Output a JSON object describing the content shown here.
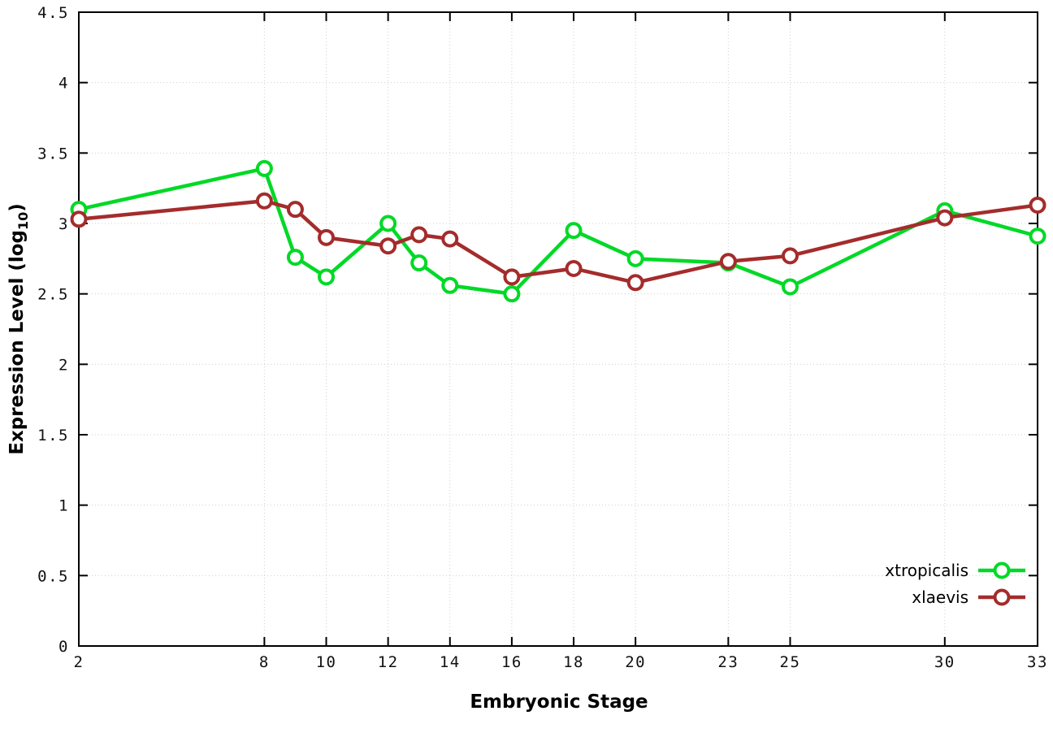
{
  "chart_data": {
    "type": "line",
    "title": "",
    "xlabel": "Embryonic Stage",
    "ylabel": {
      "main": "Expression Level (log",
      "sub": "10",
      "end": ")"
    },
    "x": [
      2,
      8,
      9,
      10,
      12,
      13,
      14,
      16,
      18,
      20,
      23,
      25,
      30,
      33
    ],
    "x_ticks": [
      2,
      8,
      10,
      12,
      14,
      16,
      18,
      20,
      23,
      25,
      30,
      33
    ],
    "y_ticks": [
      0,
      0.5,
      1,
      1.5,
      2,
      2.5,
      3,
      3.5,
      4,
      4.5
    ],
    "y_tick_labels": [
      "0",
      "0.5",
      "1",
      "1.5",
      "2",
      "2.5",
      "3",
      "3.5",
      "4",
      "4.5"
    ],
    "xlim": [
      2,
      33
    ],
    "ylim": [
      0,
      4.5
    ],
    "grid": true,
    "legend_position": "bottom-right",
    "series": [
      {
        "name": "xtropicalis",
        "color": "#00d926",
        "values": [
          3.1,
          3.39,
          2.76,
          2.62,
          3.0,
          2.72,
          2.56,
          2.5,
          2.95,
          2.75,
          2.72,
          2.55,
          3.09,
          2.91
        ]
      },
      {
        "name": "xlaevis",
        "color": "#a42c2c",
        "values": [
          3.03,
          3.16,
          3.1,
          2.9,
          2.84,
          2.92,
          2.89,
          2.62,
          2.68,
          2.58,
          2.73,
          2.77,
          3.04,
          3.13
        ]
      }
    ]
  }
}
